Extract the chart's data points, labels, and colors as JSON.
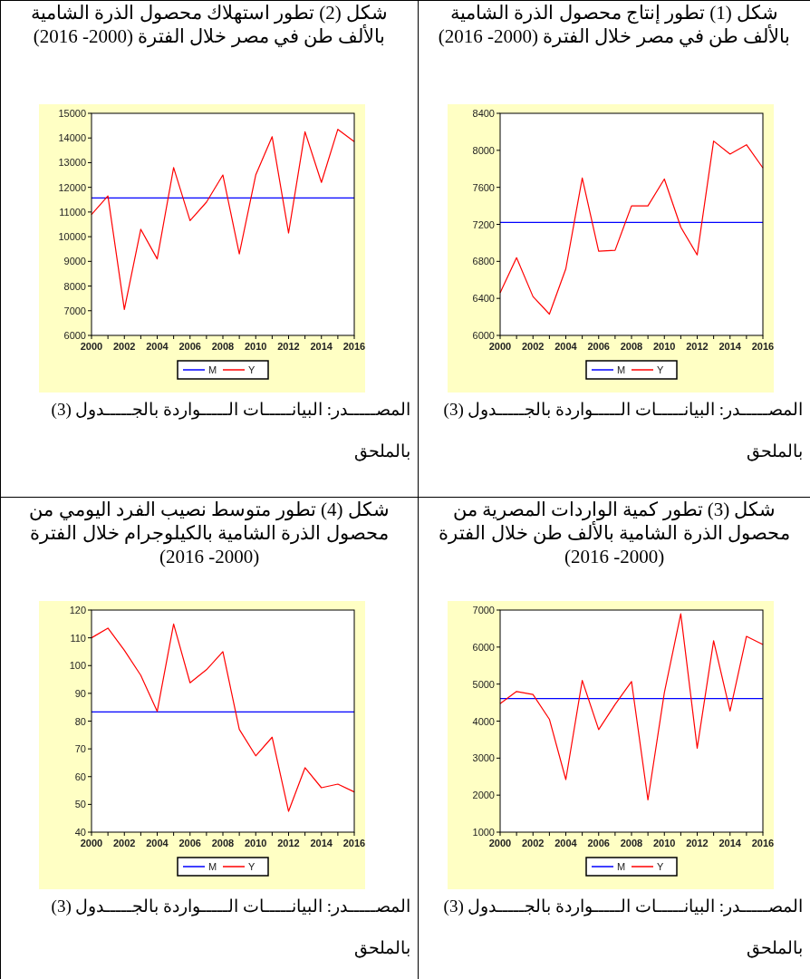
{
  "chart_data": [
    {
      "type": "line",
      "title": "شكل (1) تطور إنتاج محصول الذرة الشامية بالألف طن في مصر خلال الفترة (2000- 2016)",
      "annotations": [
        "المصـــــدر: البيانـــــات الـــــواردة بالجـــــدول (3) بالملحق"
      ],
      "x": [
        2000,
        2001,
        2002,
        2003,
        2004,
        2005,
        2006,
        2007,
        2008,
        2009,
        2010,
        2011,
        2012,
        2013,
        2014,
        2015,
        2016
      ],
      "xlim": [
        2000,
        2016
      ],
      "xticks": [
        2000,
        2002,
        2004,
        2006,
        2008,
        2010,
        2012,
        2014,
        2016
      ],
      "ylim": [
        6000,
        8400
      ],
      "yticks": [
        6000,
        6400,
        6800,
        7200,
        7600,
        8000,
        8400
      ],
      "legend": "bottom",
      "grid": false,
      "marker": "none",
      "line_style": "solid",
      "series": [
        {
          "name": "M",
          "color": "#0000ff",
          "values": [
            7220,
            7220,
            7220,
            7220,
            7220,
            7220,
            7220,
            7220,
            7220,
            7220,
            7220,
            7220,
            7220,
            7220,
            7220,
            7220,
            7220
          ]
        },
        {
          "name": "Y",
          "color": "#ff0000",
          "values": [
            6460,
            6840,
            6420,
            6230,
            6720,
            7700,
            6910,
            6920,
            7400,
            7400,
            7690,
            7170,
            6870,
            8100,
            7960,
            8060,
            7810
          ]
        }
      ]
    },
    {
      "type": "line",
      "title": "شكل (2) تطور استهلاك محصول الذرة الشامية بالألف طن في مصر خلال الفترة (2000- 2016)",
      "annotations": [
        "المصـــــدر: البيانـــــات الـــــواردة بالجـــــدول (3) بالملحق"
      ],
      "x": [
        2000,
        2001,
        2002,
        2003,
        2004,
        2005,
        2006,
        2007,
        2008,
        2009,
        2010,
        2011,
        2012,
        2013,
        2014,
        2015,
        2016
      ],
      "xlim": [
        2000,
        2016
      ],
      "xticks": [
        2000,
        2002,
        2004,
        2006,
        2008,
        2010,
        2012,
        2014,
        2016
      ],
      "ylim": [
        6000,
        15000
      ],
      "yticks": [
        6000,
        7000,
        8000,
        9000,
        10000,
        11000,
        12000,
        13000,
        14000,
        15000
      ],
      "legend": "bottom",
      "grid": false,
      "marker": "none",
      "line_style": "solid",
      "series": [
        {
          "name": "M",
          "color": "#0000ff",
          "values": [
            11570,
            11570,
            11570,
            11570,
            11570,
            11570,
            11570,
            11570,
            11570,
            11570,
            11570,
            11570,
            11570,
            11570,
            11570,
            11570,
            11570
          ]
        },
        {
          "name": "Y",
          "color": "#ff0000",
          "values": [
            10900,
            11650,
            7050,
            10300,
            9100,
            12800,
            10650,
            11400,
            12500,
            9300,
            12500,
            14050,
            10150,
            14250,
            12200,
            14350,
            13850
          ]
        }
      ]
    },
    {
      "type": "line",
      "title": "شكل (3) تطور كمية الواردات المصرية من محصول الذرة الشامية بالألف طن خلال الفترة (2000- 2016)",
      "annotations": [
        "المصـــــدر: البيانـــــات الـــــواردة بالجـــــدول (3) بالملحق"
      ],
      "x": [
        2000,
        2001,
        2002,
        2003,
        2004,
        2005,
        2006,
        2007,
        2008,
        2009,
        2010,
        2011,
        2012,
        2013,
        2014,
        2015,
        2016
      ],
      "xlim": [
        2000,
        2016
      ],
      "xticks": [
        2000,
        2002,
        2004,
        2006,
        2008,
        2010,
        2012,
        2014,
        2016
      ],
      "ylim": [
        1000,
        7000
      ],
      "yticks": [
        1000,
        2000,
        3000,
        4000,
        5000,
        6000,
        7000
      ],
      "legend": "bottom",
      "grid": false,
      "marker": "none",
      "line_style": "solid",
      "series": [
        {
          "name": "M",
          "color": "#0000ff",
          "values": [
            4610,
            4610,
            4610,
            4610,
            4610,
            4610,
            4610,
            4610,
            4610,
            4610,
            4610,
            4610,
            4610,
            4610,
            4610,
            4610,
            4610
          ]
        },
        {
          "name": "Y",
          "color": "#ff0000",
          "values": [
            4470,
            4800,
            4720,
            4050,
            2420,
            5100,
            3770,
            4450,
            5070,
            1870,
            4770,
            6900,
            3270,
            6170,
            4270,
            6290,
            6070
          ]
        }
      ]
    },
    {
      "type": "line",
      "title": "شكل (4) تطور متوسط نصيب الفرد اليومي من محصول الذرة الشامية بالكيلوجرام خلال الفترة (2000- 2016)",
      "annotations": [
        "المصـــــدر: البيانـــــات الـــــواردة بالجـــــدول (3) بالملحق"
      ],
      "x": [
        2000,
        2001,
        2002,
        2003,
        2004,
        2005,
        2006,
        2007,
        2008,
        2009,
        2010,
        2011,
        2012,
        2013,
        2014,
        2015,
        2016
      ],
      "xlim": [
        2000,
        2016
      ],
      "xticks": [
        2000,
        2002,
        2004,
        2006,
        2008,
        2010,
        2012,
        2014,
        2016
      ],
      "ylim": [
        40,
        120
      ],
      "yticks": [
        40,
        50,
        60,
        70,
        80,
        90,
        100,
        110,
        120
      ],
      "legend": "bottom",
      "grid": false,
      "marker": "none",
      "line_style": "solid",
      "series": [
        {
          "name": "M",
          "color": "#0000ff",
          "values": [
            83.3,
            83.3,
            83.3,
            83.3,
            83.3,
            83.3,
            83.3,
            83.3,
            83.3,
            83.3,
            83.3,
            83.3,
            83.3,
            83.3,
            83.3,
            83.3,
            83.3
          ]
        },
        {
          "name": "Y",
          "color": "#ff0000",
          "values": [
            110,
            113.5,
            105.5,
            96.5,
            83.5,
            115,
            93.8,
            98.5,
            105,
            77,
            67.5,
            74.2,
            47.5,
            63.2,
            56,
            57.3,
            54.5
          ]
        }
      ]
    }
  ]
}
